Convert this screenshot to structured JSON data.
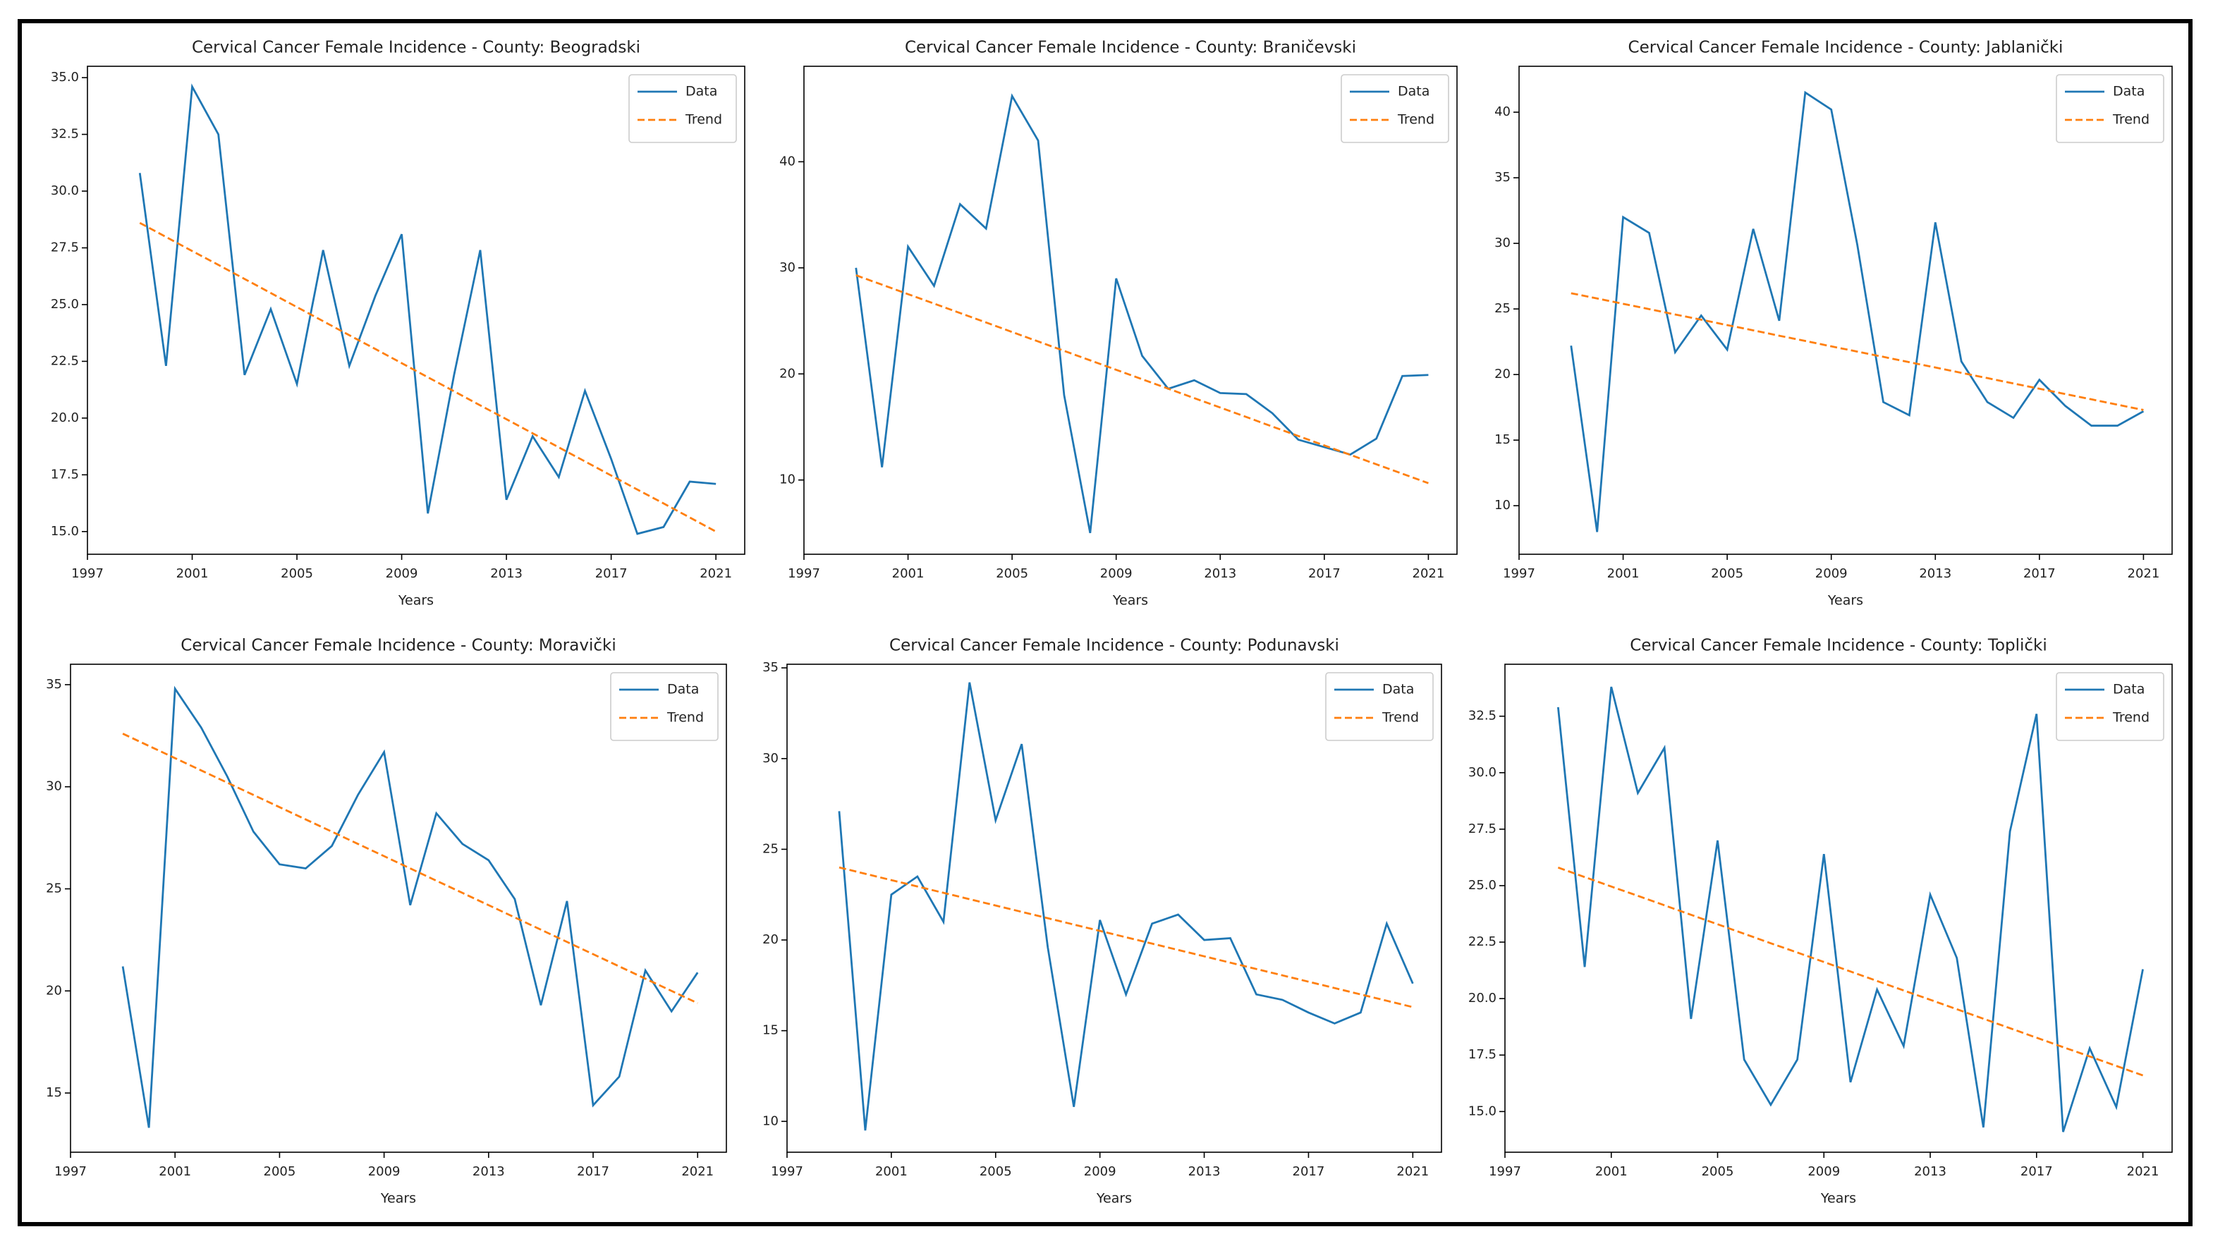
{
  "chart_data": [
    {
      "type": "line",
      "title": "Cervical Cancer Female Incidence - County: Beogradski",
      "x_label": "Years",
      "x": [
        1999,
        2000,
        2001,
        2002,
        2003,
        2004,
        2005,
        2006,
        2007,
        2008,
        2009,
        2010,
        2011,
        2012,
        2013,
        2014,
        2015,
        2016,
        2017,
        2018,
        2019,
        2020,
        2021
      ],
      "series": [
        {
          "name": "Data",
          "color": "#1f77b4",
          "values": [
            30.8,
            22.3,
            34.6,
            32.5,
            21.9,
            24.8,
            21.5,
            27.4,
            22.3,
            25.4,
            28.1,
            15.8,
            21.9,
            27.4,
            16.4,
            19.2,
            17.4,
            21.2,
            18.2,
            14.9,
            15.2,
            17.2,
            17.1
          ]
        },
        {
          "name": "Trend",
          "color": "#ff7f0e",
          "linestyle": "dashed",
          "values": [
            28.6,
            27.98,
            27.36,
            26.75,
            26.13,
            25.51,
            24.89,
            24.27,
            23.65,
            23.04,
            22.42,
            21.8,
            21.18,
            20.56,
            19.95,
            19.33,
            18.71,
            18.09,
            17.47,
            16.85,
            16.24,
            15.62,
            15.0
          ]
        }
      ],
      "xlim": [
        1997,
        2022.1
      ],
      "xticks": [
        1997,
        2001,
        2005,
        2009,
        2013,
        2017,
        2021
      ],
      "ylim": [
        14.0,
        35.5
      ],
      "yticks": [
        {
          "value": 15,
          "label": "15.0"
        },
        {
          "value": 17.5,
          "label": "17.5"
        },
        {
          "value": 20,
          "label": "20.0"
        },
        {
          "value": 22.5,
          "label": "22.5"
        },
        {
          "value": 25,
          "label": "25.0"
        },
        {
          "value": 27.5,
          "label": "27.5"
        },
        {
          "value": 30,
          "label": "30.0"
        },
        {
          "value": 32.5,
          "label": "32.5"
        },
        {
          "value": 35,
          "label": "35.0"
        }
      ],
      "legend": "upper right"
    },
    {
      "type": "line",
      "title": "Cervical Cancer Female Incidence - County: Braničevski",
      "x_label": "Years",
      "x": [
        1999,
        2000,
        2001,
        2002,
        2003,
        2004,
        2005,
        2006,
        2007,
        2008,
        2009,
        2010,
        2011,
        2012,
        2013,
        2014,
        2015,
        2016,
        2017,
        2018,
        2019,
        2020,
        2021
      ],
      "series": [
        {
          "name": "Data",
          "color": "#1f77b4",
          "values": [
            30,
            11.2,
            32,
            28.3,
            36,
            33.7,
            46.2,
            42,
            18,
            5,
            29,
            21.7,
            18.6,
            19.4,
            18.2,
            18.1,
            16.3,
            13.8,
            13.1,
            12.4,
            13.9,
            19.8,
            19.9
          ]
        },
        {
          "name": "Trend",
          "color": "#ff7f0e",
          "linestyle": "dashed",
          "values": [
            29.3,
            28.41,
            27.52,
            26.63,
            25.74,
            24.85,
            23.95,
            23.06,
            22.17,
            21.28,
            20.39,
            19.5,
            18.61,
            17.72,
            16.83,
            15.94,
            15.04,
            14.15,
            13.26,
            12.37,
            11.48,
            10.59,
            9.7
          ]
        }
      ],
      "xlim": [
        1997,
        2022.1
      ],
      "xticks": [
        1997,
        2001,
        2005,
        2009,
        2013,
        2017,
        2021
      ],
      "ylim": [
        3,
        49
      ],
      "yticks": [
        10,
        20,
        30,
        40
      ],
      "legend": "upper right"
    },
    {
      "type": "line",
      "title": "Cervical Cancer Female Incidence - County: Jablanički",
      "x_label": "Years",
      "x": [
        1999,
        2000,
        2001,
        2002,
        2003,
        2004,
        2005,
        2006,
        2007,
        2008,
        2009,
        2010,
        2011,
        2012,
        2013,
        2014,
        2015,
        2016,
        2017,
        2018,
        2019,
        2020,
        2021
      ],
      "series": [
        {
          "name": "Data",
          "color": "#1f77b4",
          "values": [
            22.2,
            8,
            32,
            30.8,
            21.7,
            24.5,
            21.9,
            31.1,
            24.1,
            41.5,
            40.2,
            29.9,
            17.9,
            16.9,
            31.6,
            21,
            17.9,
            16.7,
            19.6,
            17.6,
            16.1,
            16.1,
            17.2
          ]
        },
        {
          "name": "Trend",
          "color": "#ff7f0e",
          "linestyle": "dashed",
          "values": [
            26.2,
            25.8,
            25.39,
            24.99,
            24.58,
            24.18,
            23.77,
            23.37,
            22.96,
            22.56,
            22.15,
            21.75,
            21.35,
            20.94,
            20.54,
            20.13,
            19.73,
            19.32,
            18.92,
            18.51,
            18.11,
            17.7,
            17.3
          ]
        }
      ],
      "xlim": [
        1997,
        2022.1
      ],
      "xticks": [
        1997,
        2001,
        2005,
        2009,
        2013,
        2017,
        2021
      ],
      "ylim": [
        6.3,
        43.5
      ],
      "yticks": [
        10,
        15,
        20,
        25,
        30,
        35,
        40
      ],
      "legend": "upper right"
    },
    {
      "type": "line",
      "title": "Cervical Cancer Female Incidence - County: Moravički",
      "x_label": "Years",
      "x": [
        1999,
        2000,
        2001,
        2002,
        2003,
        2004,
        2005,
        2006,
        2007,
        2008,
        2009,
        2010,
        2011,
        2012,
        2013,
        2014,
        2015,
        2016,
        2017,
        2018,
        2019,
        2020,
        2021
      ],
      "series": [
        {
          "name": "Data",
          "color": "#1f77b4",
          "values": [
            21.2,
            13.3,
            34.8,
            32.9,
            30.5,
            27.8,
            26.2,
            26,
            27.1,
            29.6,
            31.7,
            24.2,
            28.7,
            27.2,
            26.4,
            24.5,
            19.3,
            24.4,
            14.4,
            15.8,
            21,
            19,
            20.9
          ]
        },
        {
          "name": "Trend",
          "color": "#ff7f0e",
          "linestyle": "dashed",
          "values": [
            32.6,
            32.0,
            31.4,
            30.8,
            30.2,
            29.6,
            29.0,
            28.4,
            27.8,
            27.2,
            26.6,
            26.0,
            25.4,
            24.8,
            24.2,
            23.6,
            23.0,
            22.4,
            21.8,
            21.2,
            20.6,
            20.0,
            19.4
          ]
        }
      ],
      "xlim": [
        1997,
        2022.1
      ],
      "xticks": [
        1997,
        2001,
        2005,
        2009,
        2013,
        2017,
        2021
      ],
      "ylim": [
        12.1,
        36.0
      ],
      "yticks": [
        15,
        20,
        25,
        30,
        35
      ],
      "legend": "upper right"
    },
    {
      "type": "line",
      "title": "Cervical Cancer Female Incidence - County: Podunavski",
      "x_label": "Years",
      "x": [
        1999,
        2000,
        2001,
        2002,
        2003,
        2004,
        2005,
        2006,
        2007,
        2008,
        2009,
        2010,
        2011,
        2012,
        2013,
        2014,
        2015,
        2016,
        2017,
        2018,
        2019,
        2020,
        2021
      ],
      "series": [
        {
          "name": "Data",
          "color": "#1f77b4",
          "values": [
            27.1,
            9.5,
            22.5,
            23.5,
            21,
            34.2,
            26.6,
            30.8,
            19.6,
            10.8,
            21.1,
            17,
            20.9,
            21.4,
            20,
            20.1,
            17,
            16.7,
            16,
            15.4,
            16,
            20.9,
            17.6
          ]
        },
        {
          "name": "Trend",
          "color": "#ff7f0e",
          "linestyle": "dashed",
          "values": [
            24.0,
            23.65,
            23.3,
            22.95,
            22.6,
            22.25,
            21.9,
            21.55,
            21.2,
            20.85,
            20.5,
            20.15,
            19.8,
            19.45,
            19.1,
            18.75,
            18.4,
            18.05,
            17.7,
            17.35,
            17.0,
            16.65,
            16.3
          ]
        }
      ],
      "xlim": [
        1997,
        2022.1
      ],
      "xticks": [
        1997,
        2001,
        2005,
        2009,
        2013,
        2017,
        2021
      ],
      "ylim": [
        8.3,
        35.2
      ],
      "yticks": [
        10,
        15,
        20,
        25,
        30,
        35
      ],
      "legend": "upper right"
    },
    {
      "type": "line",
      "title": "Cervical Cancer Female Incidence - County: Toplički",
      "x_label": "Years",
      "x": [
        1999,
        2000,
        2001,
        2002,
        2003,
        2004,
        2005,
        2006,
        2007,
        2008,
        2009,
        2010,
        2011,
        2012,
        2013,
        2014,
        2015,
        2016,
        2017,
        2018,
        2019,
        2020,
        2021
      ],
      "series": [
        {
          "name": "Data",
          "color": "#1f77b4",
          "values": [
            32.9,
            21.4,
            33.8,
            29.1,
            31.1,
            19.1,
            27,
            17.3,
            15.3,
            17.3,
            26.4,
            16.3,
            20.4,
            17.9,
            24.6,
            21.8,
            14.3,
            27.4,
            32.6,
            14.1,
            17.8,
            15.2,
            21.3
          ]
        },
        {
          "name": "Trend",
          "color": "#ff7f0e",
          "linestyle": "dashed",
          "values": [
            25.8,
            25.38,
            24.96,
            24.55,
            24.13,
            23.71,
            23.29,
            22.87,
            22.45,
            22.04,
            21.62,
            21.2,
            20.78,
            20.36,
            19.95,
            19.53,
            19.11,
            18.69,
            18.27,
            17.85,
            17.44,
            17.02,
            16.6
          ]
        }
      ],
      "xlim": [
        1997,
        2022.1
      ],
      "xticks": [
        1997,
        2001,
        2005,
        2009,
        2013,
        2017,
        2021
      ],
      "ylim": [
        13.2,
        34.8
      ],
      "yticks": [
        {
          "value": 15,
          "label": "15.0"
        },
        {
          "value": 17.5,
          "label": "17.5"
        },
        {
          "value": 20,
          "label": "20.0"
        },
        {
          "value": 22.5,
          "label": "22.5"
        },
        {
          "value": 25,
          "label": "25.0"
        },
        {
          "value": 27.5,
          "label": "27.5"
        },
        {
          "value": 30,
          "label": "30.0"
        },
        {
          "value": 32.5,
          "label": "32.5"
        }
      ],
      "legend": "upper right"
    }
  ]
}
